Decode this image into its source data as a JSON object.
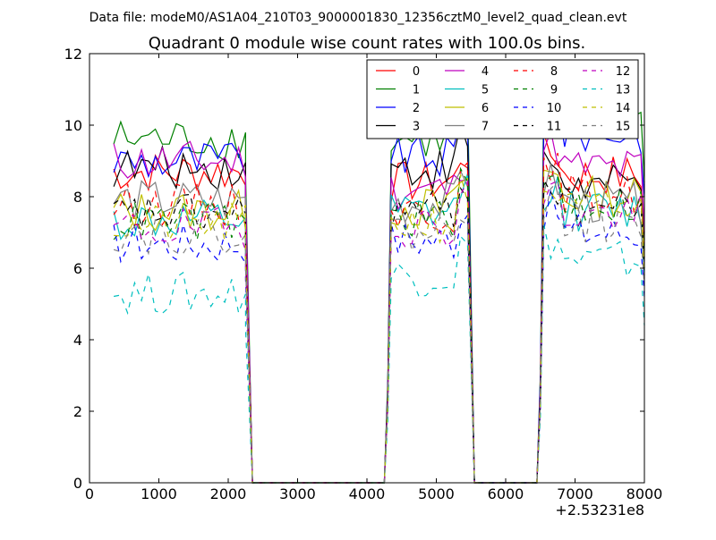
{
  "figure": {
    "suptitle": "Data file: modeM0/AS1A04_210T03_9000001830_12356cztM0_level2_quad_clean.evt",
    "title": "Quadrant 0 module wise count rates with 100.0s bins.",
    "offset_label": "+2.53231e8"
  },
  "chart_data": {
    "type": "line",
    "title": "Quadrant 0 module wise count rates with 100.0s bins.",
    "xlabel": "",
    "ylabel": "",
    "xlim": [
      0,
      8000
    ],
    "ylim": [
      0,
      12
    ],
    "x_offset": 253231000,
    "xticks": [
      0,
      1000,
      2000,
      3000,
      4000,
      5000,
      6000,
      7000,
      8000
    ],
    "xtick_labels": [
      "0",
      "1000",
      "2000",
      "3000",
      "4000",
      "5000",
      "6000",
      "7000",
      "8000"
    ],
    "yticks": [
      0,
      2,
      4,
      6,
      8,
      10,
      12
    ],
    "ytick_labels": [
      "0",
      "2",
      "4",
      "6",
      "8",
      "10",
      "12"
    ],
    "grid": false,
    "legend_position": "top-right",
    "legend_columns": 4,
    "segments": [
      {
        "start": 350,
        "end": 2250
      },
      {
        "start": 4350,
        "end": 5450
      },
      {
        "start": 6550,
        "end": 7950
      }
    ],
    "gap_points": [
      2250,
      2350,
      4150,
      4250,
      5550,
      5650,
      6350,
      6450
    ],
    "series": [
      {
        "name": "0",
        "color": "#ff0000",
        "dash": "solid",
        "levels": [
          8.7,
          8.4,
          8.6
        ]
      },
      {
        "name": "1",
        "color": "#008000",
        "dash": "solid",
        "levels": [
          9.6,
          9.6,
          10.2
        ]
      },
      {
        "name": "2",
        "color": "#0000ff",
        "dash": "solid",
        "levels": [
          9.0,
          9.1,
          9.8
        ]
      },
      {
        "name": "3",
        "color": "#000000",
        "dash": "solid",
        "levels": [
          8.8,
          8.8,
          8.3
        ]
      },
      {
        "name": "4",
        "color": "#bf00bf",
        "dash": "solid",
        "levels": [
          9.0,
          8.2,
          8.8
        ]
      },
      {
        "name": "5",
        "color": "#00bfbf",
        "dash": "solid",
        "levels": [
          7.3,
          7.5,
          7.6
        ]
      },
      {
        "name": "6",
        "color": "#bfbf00",
        "dash": "solid",
        "levels": [
          7.6,
          7.7,
          8.0
        ]
      },
      {
        "name": "7",
        "color": "#7f7f7f",
        "dash": "solid",
        "levels": [
          7.9,
          7.8,
          7.8
        ]
      },
      {
        "name": "8",
        "color": "#ff0000",
        "dash": "dashed",
        "levels": [
          7.8,
          7.6,
          8.1
        ]
      },
      {
        "name": "9",
        "color": "#008000",
        "dash": "dashed",
        "levels": [
          7.3,
          7.4,
          7.8
        ]
      },
      {
        "name": "10",
        "color": "#0000ff",
        "dash": "dashed",
        "levels": [
          6.7,
          6.8,
          7.0
        ]
      },
      {
        "name": "11",
        "color": "#000000",
        "dash": "dashed",
        "levels": [
          7.5,
          7.6,
          7.7
        ]
      },
      {
        "name": "12",
        "color": "#bf00bf",
        "dash": "dashed",
        "levels": [
          7.1,
          7.2,
          7.5
        ]
      },
      {
        "name": "13",
        "color": "#00bfbf",
        "dash": "dashed",
        "levels": [
          5.3,
          5.8,
          6.2
        ]
      },
      {
        "name": "14",
        "color": "#bfbf00",
        "dash": "dashed",
        "levels": [
          7.2,
          7.3,
          7.6
        ]
      },
      {
        "name": "15",
        "color": "#7f7f7f",
        "dash": "dashed",
        "levels": [
          7.0,
          7.0,
          7.3
        ]
      }
    ]
  }
}
